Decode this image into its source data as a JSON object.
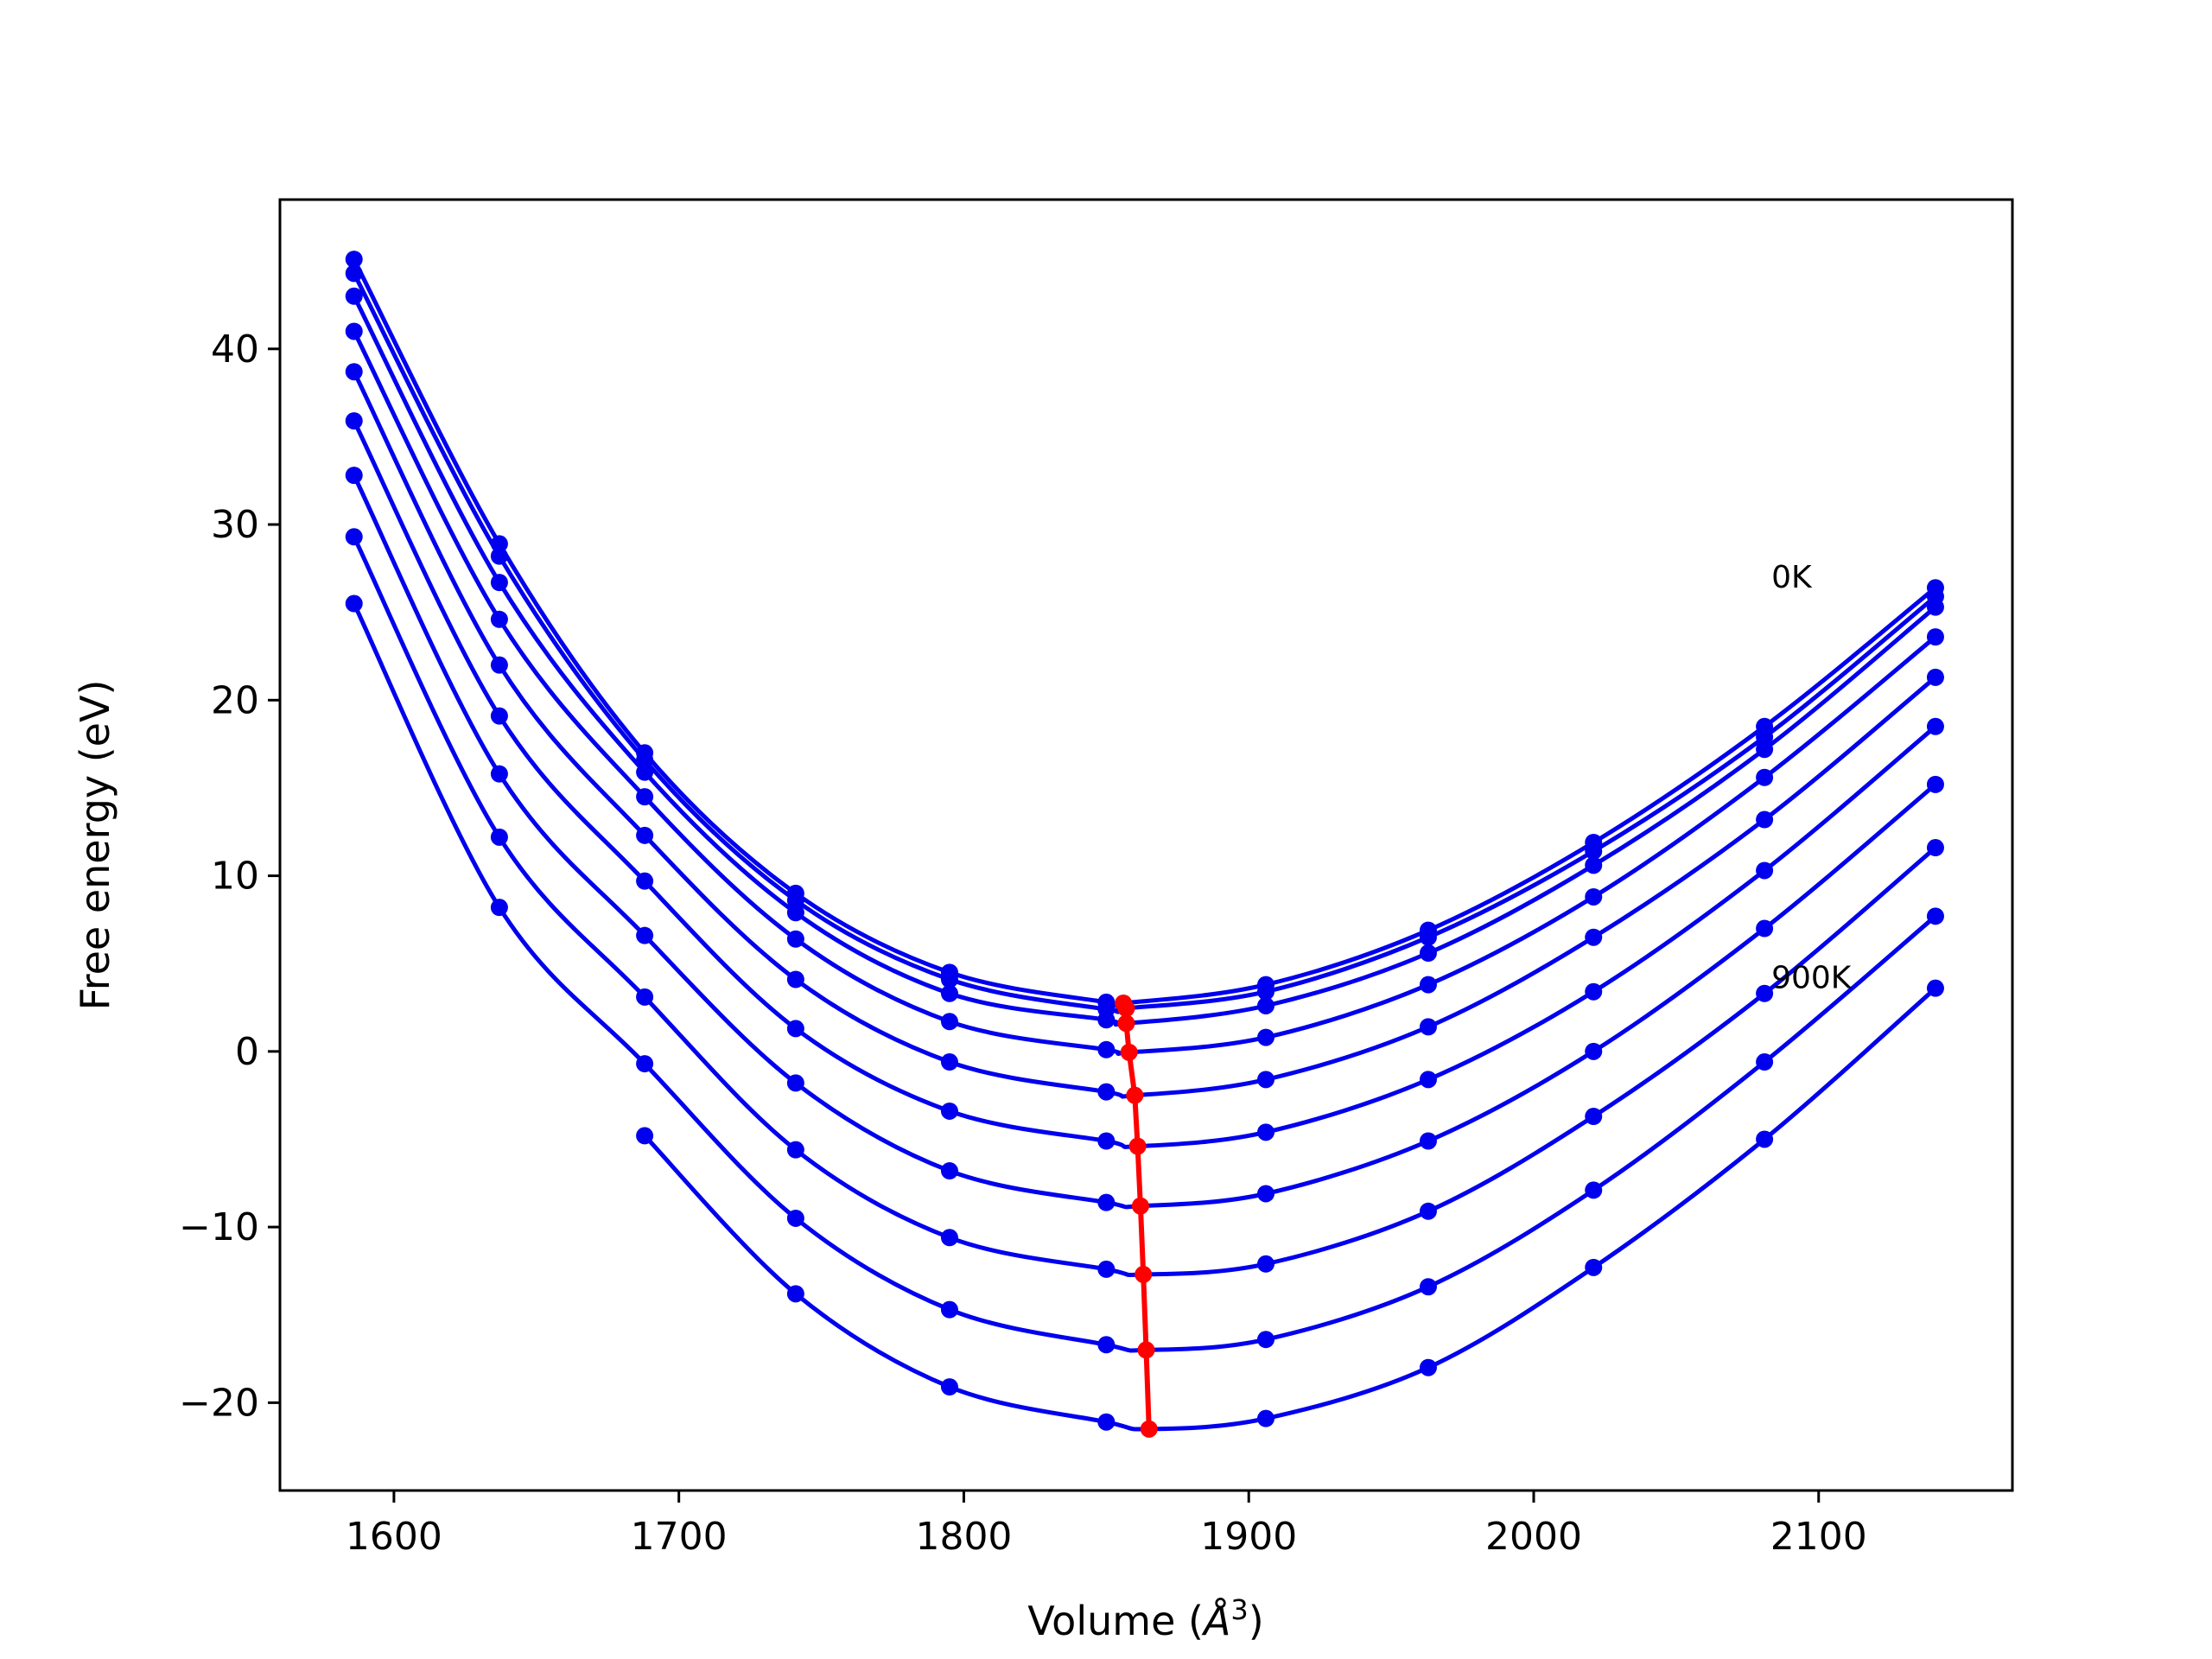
{
  "chart_data": {
    "type": "line",
    "title": "",
    "xlabel": "Volume (",
    "xlabel_symbol": "Å",
    "xlabel_sup": "3",
    "xlabel_close": ")",
    "ylabel": "Free energy (eV)",
    "xlim": [
      1560,
      2168
    ],
    "ylim": [
      -25,
      48.5
    ],
    "x_ticks": [
      1600,
      1700,
      1800,
      1900,
      2000,
      2100
    ],
    "x_tick_labels": [
      "1600",
      "1700",
      "1800",
      "1900",
      "2000",
      "2100"
    ],
    "y_ticks": [
      -20,
      -10,
      0,
      10,
      20,
      30,
      40
    ],
    "y_tick_labels": [
      "−20",
      "−10",
      "0",
      "10",
      "20",
      "30",
      "40"
    ],
    "grid": false,
    "legend": "none",
    "annotations": [
      {
        "text": "0K",
        "x": 2081,
        "y": 27.0
      },
      {
        "text": "900K",
        "x": 2081,
        "y": 4.2
      }
    ],
    "x": [
      1586,
      1637,
      1688,
      1741,
      1795,
      1850,
      1906,
      1963,
      2021,
      2081,
      2141
    ],
    "series": [
      {
        "color": "#0000ee",
        "values": [
          45.1,
          28.9,
          17.0,
          9.0,
          4.5,
          2.8,
          3.8,
          6.9,
          11.9,
          18.5,
          26.4
        ],
        "min": [
          1856,
          2.75
        ]
      },
      {
        "color": "#0000ee",
        "values": [
          44.3,
          28.2,
          16.6,
          8.6,
          4.1,
          2.4,
          3.4,
          6.5,
          11.4,
          17.9,
          25.9
        ],
        "min": [
          1857,
          2.45
        ]
      },
      {
        "color": "#0000ee",
        "values": [
          43.0,
          26.7,
          15.9,
          7.9,
          3.3,
          1.8,
          2.6,
          5.6,
          10.6,
          17.2,
          25.3
        ],
        "min": [
          1857,
          1.6
        ]
      },
      {
        "color": "#0000ee",
        "values": [
          41.0,
          24.6,
          14.5,
          6.4,
          1.7,
          0.1,
          0.8,
          3.8,
          8.8,
          15.6,
          23.6
        ],
        "min": [
          1858,
          -0.05
        ]
      },
      {
        "color": "#0000ee",
        "values": [
          38.7,
          22.0,
          12.3,
          4.1,
          -0.6,
          -2.3,
          -1.6,
          1.4,
          6.5,
          13.2,
          21.3
        ],
        "min": [
          1860,
          -2.5
        ]
      },
      {
        "color": "#0000ee",
        "values": [
          35.9,
          19.1,
          9.7,
          1.3,
          -3.4,
          -5.1,
          -4.6,
          -1.6,
          3.4,
          10.3,
          18.5
        ],
        "min": [
          1861,
          -5.4
        ]
      },
      {
        "color": "#0000ee",
        "values": [
          32.8,
          15.8,
          6.6,
          -1.8,
          -6.8,
          -8.6,
          -8.1,
          -5.1,
          0.0,
          7.0,
          15.2
        ],
        "min": [
          1862,
          -8.8
        ]
      },
      {
        "color": "#0000ee",
        "values": [
          29.3,
          12.2,
          3.1,
          -5.6,
          -10.6,
          -12.4,
          -12.1,
          -9.1,
          -3.7,
          3.3,
          11.6
        ],
        "min": [
          1863,
          -12.7
        ]
      },
      {
        "color": "#0000ee",
        "values": [
          25.5,
          8.2,
          -0.7,
          -9.5,
          -14.7,
          -16.7,
          -16.4,
          -13.4,
          -7.9,
          -0.6,
          7.7
        ],
        "min": [
          1864,
          -17.0
        ]
      },
      {
        "color": "#0000ee",
        "values": [
          null,
          null,
          -4.8,
          -13.8,
          -19.1,
          -21.1,
          -20.9,
          -18.0,
          -12.3,
          -5.0,
          3.6
        ],
        "min": [
          1865,
          -21.5
        ]
      }
    ],
    "minima_series": {
      "color": "#ff0000",
      "x": [
        1856,
        1857,
        1857,
        1858,
        1860,
        1861,
        1862,
        1863,
        1864,
        1865
      ],
      "y": [
        2.75,
        2.45,
        1.6,
        -0.05,
        -2.5,
        -5.4,
        -8.8,
        -12.7,
        -17.0,
        -21.5
      ]
    }
  }
}
